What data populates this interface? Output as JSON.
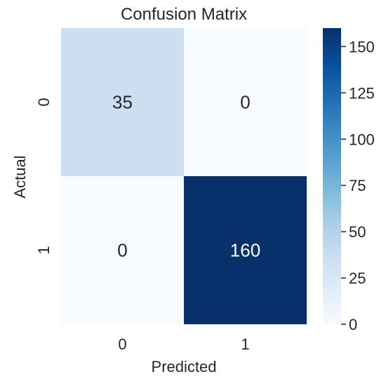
{
  "chart_data": {
    "type": "heatmap",
    "title": "Confusion Matrix",
    "xlabel": "Predicted",
    "ylabel": "Actual",
    "x_categories": [
      "0",
      "1"
    ],
    "y_categories": [
      "0",
      "1"
    ],
    "values": [
      [
        35,
        0
      ],
      [
        0,
        160
      ]
    ],
    "annotations": [
      [
        "35",
        "0"
      ],
      [
        "0",
        "160"
      ]
    ],
    "colormap": "Blues",
    "colorbar": {
      "range": [
        0,
        160
      ],
      "ticks": [
        0,
        25,
        50,
        75,
        100,
        125,
        150
      ],
      "tick_labels": [
        "0",
        "25",
        "50",
        "75",
        "100",
        "125",
        "150"
      ]
    },
    "colors": {
      "low": "#f7fbff",
      "high": "#08306b",
      "annotation_dark": "#262626",
      "annotation_light": "#ffffff",
      "text": "#262626"
    }
  }
}
